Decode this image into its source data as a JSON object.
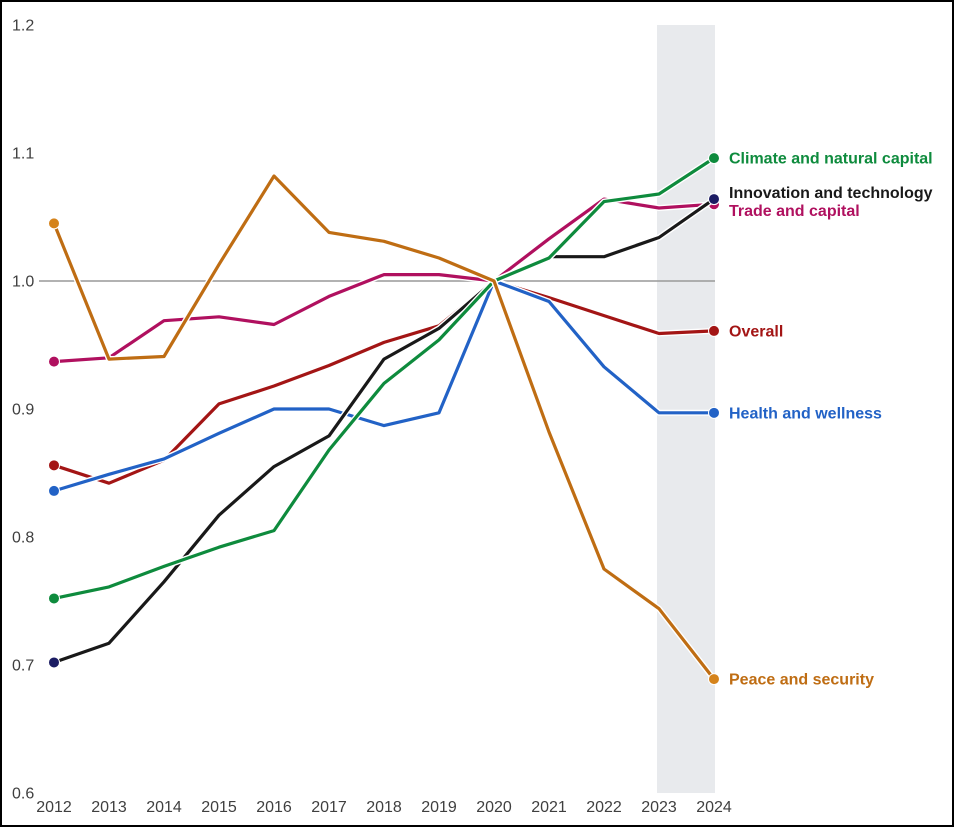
{
  "chart_data": {
    "type": "line",
    "x": [
      2012,
      2013,
      2014,
      2015,
      2016,
      2017,
      2018,
      2019,
      2020,
      2021,
      2022,
      2023,
      2024
    ],
    "xtick_labels": [
      "2012",
      "2013",
      "2014",
      "2015",
      "2016",
      "2017",
      "2018",
      "2019",
      "2020",
      "2021",
      "2022",
      "2023",
      "2024"
    ],
    "ylim": [
      0.6,
      1.2
    ],
    "yticks": [
      1.2,
      1.1,
      1.0,
      0.9,
      0.8,
      0.7,
      0.6
    ],
    "ytick_labels": [
      "1.2",
      "1.1",
      "1.0",
      "0.9",
      "0.8",
      "0.7",
      "0.6"
    ],
    "baseline_value": 1.0,
    "grid": "baseline-only",
    "legend_position": "right-of-line-ends",
    "highlight_band": {
      "from_year": 2023,
      "to_year": 2024,
      "color": "#e8eaed"
    },
    "baseline_color": "#999999",
    "series": [
      {
        "name": "Climate and natural capital",
        "color": "#0e8b3d",
        "values": [
          0.752,
          0.761,
          0.777,
          0.792,
          0.805,
          0.868,
          0.92,
          0.954,
          1.0,
          1.018,
          1.062,
          1.068,
          1.096
        ]
      },
      {
        "name": "Innovation and technology",
        "color": "#191919",
        "dot_color": "#1b1c63",
        "values": [
          0.702,
          0.717,
          0.765,
          0.817,
          0.855,
          0.879,
          0.939,
          0.963,
          1.0,
          1.019,
          1.019,
          1.034,
          1.064
        ]
      },
      {
        "name": "Trade and capital",
        "color": "#b0105f",
        "values": [
          0.937,
          0.94,
          0.969,
          0.972,
          0.966,
          0.988,
          1.005,
          1.005,
          1.0,
          1.033,
          1.064,
          1.057,
          1.06
        ]
      },
      {
        "name": "Overall",
        "color": "#a31515",
        "values": [
          0.856,
          0.842,
          0.86,
          0.904,
          0.918,
          0.934,
          0.952,
          0.965,
          1.0,
          0.987,
          0.973,
          0.959,
          0.961
        ]
      },
      {
        "name": "Health and wellness",
        "color": "#2262c6",
        "values": [
          0.836,
          0.849,
          0.861,
          0.881,
          0.9,
          0.9,
          0.887,
          0.897,
          1.0,
          0.984,
          0.933,
          0.897,
          0.897
        ]
      },
      {
        "name": "Peace and security",
        "color": "#bf6d13",
        "dot_color": "#d5831b",
        "values": [
          1.045,
          0.939,
          0.941,
          1.013,
          1.082,
          1.038,
          1.031,
          1.018,
          1.0,
          0.882,
          0.775,
          0.744,
          0.689
        ]
      }
    ]
  }
}
